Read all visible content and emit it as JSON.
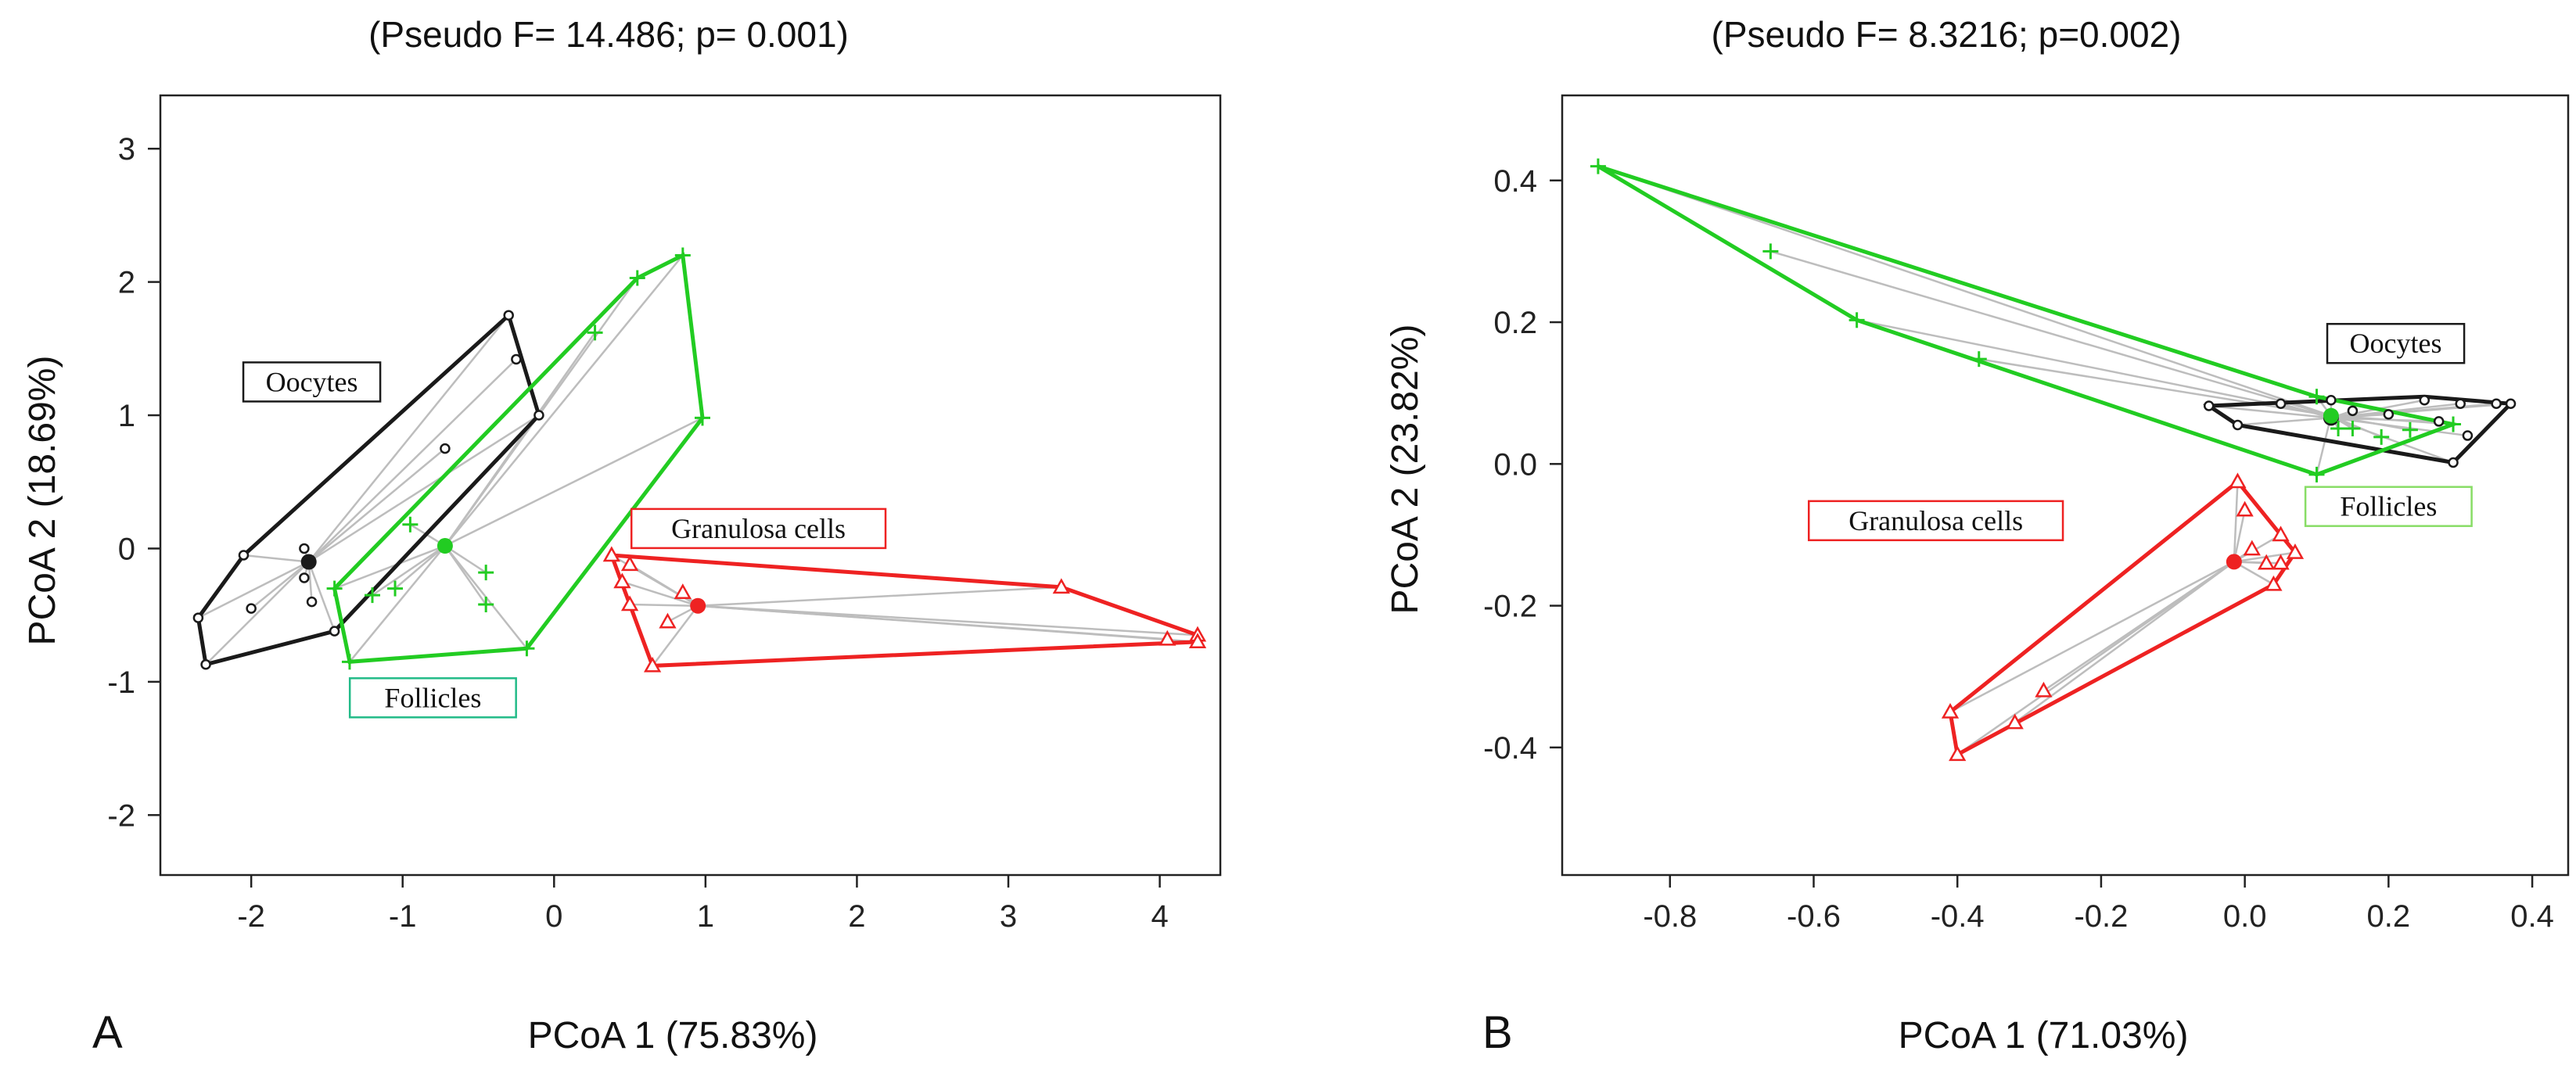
{
  "chart_data": [
    {
      "type": "scatter",
      "panel_label": "A",
      "title": "(Pseudo F= 14.486; p= 0.001)",
      "xlabel": "PCoA 1 (75.83%)",
      "ylabel": "PCoA 2 (18.69%)",
      "xlim": [
        -2.6,
        4.4
      ],
      "ylim": [
        -2.45,
        3.4
      ],
      "xticks": [
        -2,
        -1,
        0,
        1,
        2,
        3,
        4
      ],
      "yticks": [
        -2,
        -1,
        0,
        1,
        2,
        3
      ],
      "xtick_labels": [
        "-2",
        "-1",
        "0",
        "1",
        "2",
        "3",
        "4"
      ],
      "ytick_labels": [
        "-2",
        "-1",
        "0",
        "1",
        "2",
        "3"
      ],
      "series": [
        {
          "name": "Oocytes",
          "label": "Oocytes",
          "color": "#1a1a1a",
          "marker": "circle",
          "centroid": [
            -1.62,
            -0.1
          ],
          "points": [
            [
              -2.35,
              -0.52
            ],
            [
              -2.3,
              -0.87
            ],
            [
              -2.05,
              -0.05
            ],
            [
              -2.0,
              -0.45
            ],
            [
              -1.65,
              0.0
            ],
            [
              -1.65,
              -0.22
            ],
            [
              -1.6,
              -0.4
            ],
            [
              -1.45,
              -0.62
            ],
            [
              -0.72,
              0.75
            ],
            [
              -0.3,
              1.75
            ],
            [
              -0.25,
              1.42
            ],
            [
              -0.1,
              1.0
            ]
          ],
          "hull": [
            [
              -2.35,
              -0.52
            ],
            [
              -2.05,
              -0.05
            ],
            [
              -0.3,
              1.75
            ],
            [
              -0.1,
              1.0
            ],
            [
              -1.45,
              -0.62
            ],
            [
              -2.3,
              -0.87
            ]
          ],
          "legend_anchor": [
            -1.6,
            1.25
          ]
        },
        {
          "name": "Follicles",
          "label": "Follicles",
          "color": "#22cc22",
          "label_border": "#22bb88",
          "marker": "plus",
          "centroid": [
            -0.72,
            0.02
          ],
          "points": [
            [
              -1.45,
              -0.3
            ],
            [
              -1.35,
              -0.85
            ],
            [
              -1.2,
              -0.35
            ],
            [
              -1.05,
              -0.3
            ],
            [
              -0.95,
              0.18
            ],
            [
              -0.45,
              -0.18
            ],
            [
              -0.45,
              -0.42
            ],
            [
              -0.18,
              -0.75
            ],
            [
              0.27,
              1.62
            ],
            [
              0.55,
              2.03
            ],
            [
              0.85,
              2.2
            ],
            [
              0.98,
              0.98
            ]
          ],
          "hull": [
            [
              -1.45,
              -0.3
            ],
            [
              -1.35,
              -0.85
            ],
            [
              -0.18,
              -0.75
            ],
            [
              0.98,
              0.98
            ],
            [
              0.85,
              2.2
            ],
            [
              0.55,
              2.03
            ]
          ],
          "legend_anchor": [
            -0.8,
            -1.12
          ]
        },
        {
          "name": "Granulosa cells",
          "label": "Granulosa cells",
          "color": "#ee2222",
          "marker": "triangle",
          "centroid": [
            0.95,
            -0.43
          ],
          "points": [
            [
              0.38,
              -0.05
            ],
            [
              0.45,
              -0.25
            ],
            [
              0.5,
              -0.12
            ],
            [
              0.5,
              -0.42
            ],
            [
              0.65,
              -0.88
            ],
            [
              0.75,
              -0.55
            ],
            [
              0.85,
              -0.33
            ],
            [
              3.35,
              -0.29
            ],
            [
              4.05,
              -0.68
            ],
            [
              4.25,
              -0.65
            ],
            [
              4.25,
              -0.7
            ]
          ],
          "hull": [
            [
              0.38,
              -0.05
            ],
            [
              0.5,
              -0.42
            ],
            [
              0.65,
              -0.88
            ],
            [
              4.25,
              -0.7
            ],
            [
              4.25,
              -0.65
            ],
            [
              3.35,
              -0.29
            ]
          ],
          "legend_anchor": [
            1.35,
            0.15
          ]
        }
      ]
    },
    {
      "type": "scatter",
      "panel_label": "B",
      "title": "(Pseudo F= 8.3216; p=0.002)",
      "xlabel": "PCoA 1 (71.03%)",
      "ylabel": "PCoA 2 (23.82%)",
      "xlim": [
        -0.95,
        0.45
      ],
      "ylim": [
        -0.58,
        0.52
      ],
      "xticks": [
        -0.8,
        -0.6,
        -0.4,
        -0.2,
        0.0,
        0.2,
        0.4
      ],
      "yticks": [
        -0.4,
        -0.2,
        0.0,
        0.2,
        0.4
      ],
      "xtick_labels": [
        "-0.8",
        "-0.6",
        "-0.4",
        "-0.2",
        "0.0",
        "0.2",
        "0.4"
      ],
      "ytick_labels": [
        "-0.4",
        "-0.2",
        "0.0",
        "0.2",
        "0.4"
      ],
      "series": [
        {
          "name": "Oocytes",
          "label": "Oocytes",
          "color": "#1a1a1a",
          "marker": "circle",
          "centroid": [
            0.12,
            0.065
          ],
          "points": [
            [
              -0.05,
              0.082
            ],
            [
              -0.01,
              0.055
            ],
            [
              0.05,
              0.085
            ],
            [
              0.12,
              0.09
            ],
            [
              0.15,
              0.075
            ],
            [
              0.2,
              0.07
            ],
            [
              0.25,
              0.09
            ],
            [
              0.27,
              0.06
            ],
            [
              0.3,
              0.085
            ],
            [
              0.31,
              0.04
            ],
            [
              0.35,
              0.085
            ],
            [
              0.37,
              0.085
            ],
            [
              0.29,
              0.002
            ]
          ],
          "hull": [
            [
              -0.05,
              0.082
            ],
            [
              0.25,
              0.095
            ],
            [
              0.37,
              0.085
            ],
            [
              0.29,
              0.002
            ],
            [
              -0.01,
              0.055
            ]
          ],
          "legend_anchor": [
            0.21,
            0.17
          ]
        },
        {
          "name": "Follicles",
          "label": "Follicles",
          "color": "#22cc22",
          "label_border": "#88dd66",
          "marker": "plus",
          "centroid": [
            0.12,
            0.068
          ],
          "points": [
            [
              -0.9,
              0.42
            ],
            [
              -0.66,
              0.3
            ],
            [
              -0.54,
              0.203
            ],
            [
              -0.37,
              0.148
            ],
            [
              0.1,
              -0.015
            ],
            [
              0.1,
              0.095
            ],
            [
              0.13,
              0.05
            ],
            [
              0.15,
              0.05
            ],
            [
              0.19,
              0.038
            ],
            [
              0.23,
              0.048
            ],
            [
              0.29,
              0.056
            ]
          ],
          "hull": [
            [
              -0.9,
              0.42
            ],
            [
              -0.54,
              0.203
            ],
            [
              0.1,
              -0.015
            ],
            [
              0.29,
              0.056
            ],
            [
              0.1,
              0.095
            ]
          ],
          "legend_anchor": [
            0.2,
            -0.06
          ]
        },
        {
          "name": "Granulosa cells",
          "label": "Granulosa cells",
          "color": "#ee2222",
          "marker": "triangle",
          "centroid": [
            -0.015,
            -0.138
          ],
          "points": [
            [
              -0.41,
              -0.35
            ],
            [
              -0.4,
              -0.41
            ],
            [
              -0.32,
              -0.365
            ],
            [
              -0.28,
              -0.32
            ],
            [
              -0.01,
              -0.025
            ],
            [
              0.0,
              -0.065
            ],
            [
              0.01,
              -0.12
            ],
            [
              0.03,
              -0.14
            ],
            [
              0.04,
              -0.17
            ],
            [
              0.05,
              -0.14
            ],
            [
              0.05,
              -0.1
            ],
            [
              0.07,
              -0.125
            ]
          ],
          "hull": [
            [
              -0.01,
              -0.025
            ],
            [
              -0.41,
              -0.35
            ],
            [
              -0.4,
              -0.41
            ],
            [
              0.04,
              -0.17
            ],
            [
              0.07,
              -0.125
            ]
          ],
          "legend_anchor": [
            -0.43,
            -0.08
          ]
        }
      ]
    }
  ]
}
